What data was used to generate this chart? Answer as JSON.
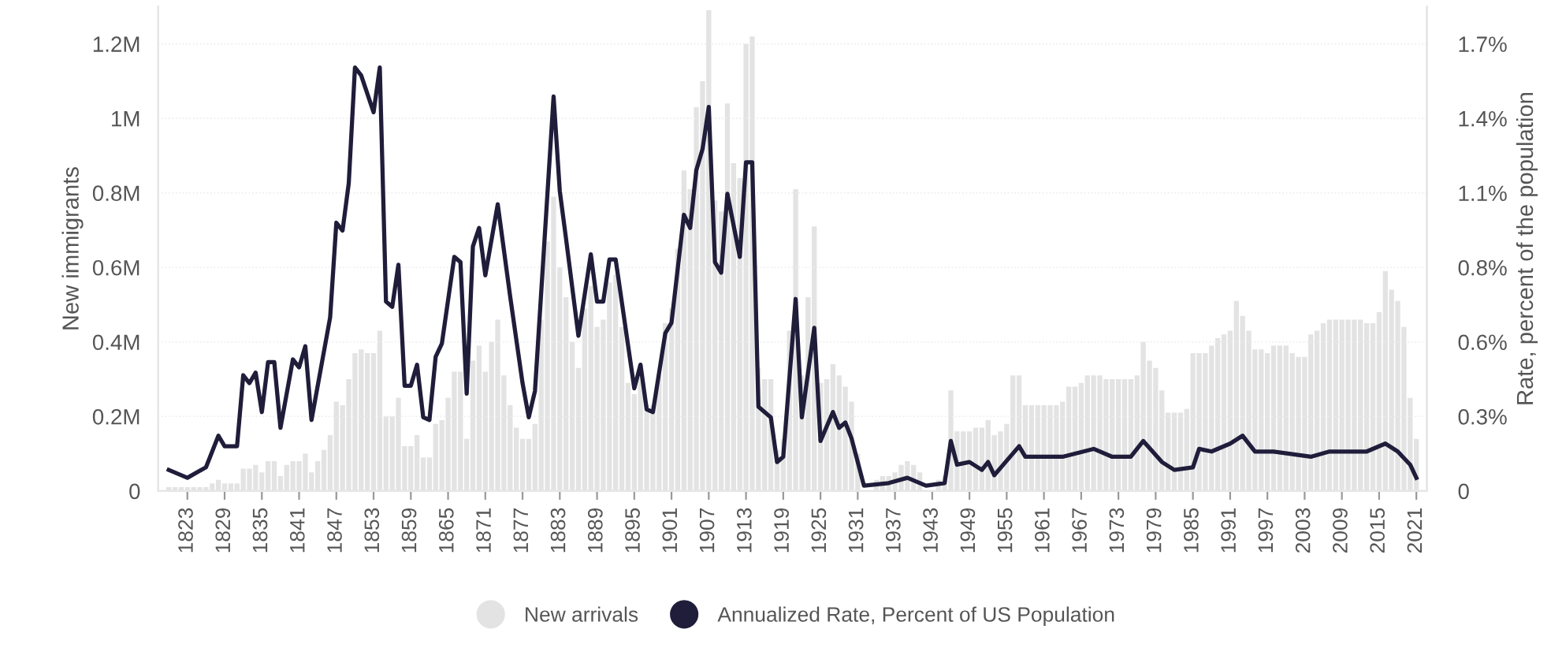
{
  "chart_data": {
    "type": "bar",
    "ylabel": "New immigrants",
    "y2label": "Rate, percent of the population",
    "x": [
      1820,
      1821,
      1822,
      1823,
      1824,
      1825,
      1826,
      1827,
      1828,
      1829,
      1830,
      1831,
      1832,
      1833,
      1834,
      1835,
      1836,
      1837,
      1838,
      1839,
      1840,
      1841,
      1842,
      1843,
      1844,
      1845,
      1846,
      1847,
      1848,
      1849,
      1850,
      1851,
      1852,
      1853,
      1854,
      1855,
      1856,
      1857,
      1858,
      1859,
      1860,
      1861,
      1862,
      1863,
      1864,
      1865,
      1866,
      1867,
      1868,
      1869,
      1870,
      1871,
      1872,
      1873,
      1874,
      1875,
      1876,
      1877,
      1878,
      1879,
      1880,
      1881,
      1882,
      1883,
      1884,
      1885,
      1886,
      1887,
      1888,
      1889,
      1890,
      1891,
      1892,
      1893,
      1894,
      1895,
      1896,
      1897,
      1898,
      1899,
      1900,
      1901,
      1902,
      1903,
      1904,
      1905,
      1906,
      1907,
      1908,
      1909,
      1910,
      1911,
      1912,
      1913,
      1914,
      1915,
      1916,
      1917,
      1918,
      1919,
      1920,
      1921,
      1922,
      1923,
      1924,
      1925,
      1926,
      1927,
      1928,
      1929,
      1930,
      1931,
      1932,
      1933,
      1934,
      1935,
      1936,
      1937,
      1938,
      1939,
      1940,
      1941,
      1942,
      1943,
      1944,
      1945,
      1946,
      1947,
      1948,
      1949,
      1950,
      1951,
      1952,
      1953,
      1954,
      1955,
      1956,
      1957,
      1958,
      1959,
      1960,
      1961,
      1962,
      1963,
      1964,
      1965,
      1966,
      1967,
      1968,
      1969,
      1970,
      1971,
      1972,
      1973,
      1974,
      1975,
      1976,
      1977,
      1978,
      1979,
      1980,
      1981,
      1982,
      1983,
      1984,
      1985,
      1986,
      1987,
      1988,
      1989,
      1990,
      1991,
      1992,
      1993,
      1994,
      1995,
      1996,
      1997,
      1998,
      1999,
      2000,
      2001,
      2002,
      2003,
      2004,
      2005,
      2006,
      2007,
      2008,
      2009,
      2010,
      2011,
      2012,
      2013,
      2014,
      2015,
      2016,
      2017,
      2018,
      2019,
      2020,
      2021
    ],
    "series": [
      {
        "name": "New arrivals",
        "color": "#e3e3e3",
        "values": [
          10000,
          10000,
          10000,
          10000,
          10000,
          10000,
          10000,
          20000,
          30000,
          20000,
          20000,
          20000,
          60000,
          60000,
          70000,
          50000,
          80000,
          80000,
          40000,
          70000,
          80000,
          80000,
          100000,
          50000,
          80000,
          110000,
          150000,
          240000,
          230000,
          300000,
          370000,
          380000,
          370000,
          370000,
          430000,
          200000,
          200000,
          250000,
          120000,
          120000,
          150000,
          90000,
          90000,
          180000,
          190000,
          250000,
          320000,
          320000,
          140000,
          350000,
          390000,
          320000,
          400000,
          460000,
          310000,
          230000,
          170000,
          140000,
          140000,
          180000,
          460000,
          670000,
          790000,
          600000,
          520000,
          400000,
          330000,
          490000,
          550000,
          440000,
          460000,
          560000,
          580000,
          440000,
          290000,
          260000,
          340000,
          230000,
          230000,
          310000,
          450000,
          490000,
          650000,
          860000,
          810000,
          1030000,
          1100000,
          1290000,
          780000,
          750000,
          1040000,
          880000,
          840000,
          1200000,
          1220000,
          330000,
          300000,
          300000,
          110000,
          140000,
          430000,
          810000,
          310000,
          520000,
          710000,
          290000,
          300000,
          340000,
          310000,
          280000,
          240000,
          100000,
          null,
          null,
          30000,
          40000,
          40000,
          50000,
          70000,
          80000,
          70000,
          50000,
          null,
          null,
          30000,
          40000,
          270000,
          160000,
          160000,
          160000,
          170000,
          170000,
          190000,
          150000,
          160000,
          180000,
          310000,
          310000,
          230000,
          230000,
          230000,
          230000,
          230000,
          230000,
          240000,
          280000,
          280000,
          290000,
          310000,
          310000,
          310000,
          300000,
          300000,
          300000,
          300000,
          300000,
          310000,
          400000,
          350000,
          330000,
          270000,
          210000,
          210000,
          210000,
          220000,
          370000,
          370000,
          370000,
          390000,
          410000,
          420000,
          430000,
          510000,
          470000,
          430000,
          380000,
          380000,
          370000,
          390000,
          390000,
          390000,
          370000,
          360000,
          360000,
          420000,
          430000,
          450000,
          460000,
          460000,
          460000,
          460000,
          460000,
          460000,
          450000,
          450000,
          480000,
          590000,
          540000,
          510000,
          440000,
          250000,
          140000
        ]
      },
      {
        "name": "Annualized Rate, Percent of US Population",
        "type": "line",
        "axis": "y2",
        "color": "#1f1d3a",
        "x": [
          1820,
          1823,
          1826,
          1828,
          1829,
          1831,
          1832,
          1833,
          1834,
          1835,
          1836,
          1837,
          1838,
          1840,
          1841,
          1842,
          1843,
          1846,
          1847,
          1848,
          1849,
          1850,
          1851,
          1853,
          1854,
          1855,
          1856,
          1857,
          1858,
          1859,
          1860,
          1861,
          1862,
          1863,
          1864,
          1866,
          1867,
          1868,
          1869,
          1870,
          1871,
          1873,
          1875,
          1877,
          1878,
          1879,
          1882,
          1883,
          1884,
          1886,
          1888,
          1889,
          1890,
          1891,
          1892,
          1895,
          1896,
          1897,
          1898,
          1900,
          1901,
          1903,
          1904,
          1905,
          1906,
          1907,
          1908,
          1909,
          1910,
          1912,
          1913,
          1914,
          1915,
          1917,
          1918,
          1919,
          1921,
          1922,
          1924,
          1925,
          1927,
          1928,
          1929,
          1930,
          1932,
          1936,
          1939,
          1942,
          1945,
          1946,
          1947,
          1949,
          1951,
          1952,
          1953,
          1957,
          1958,
          1964,
          1969,
          1972,
          1975,
          1977,
          1980,
          1982,
          1985,
          1986,
          1988,
          1991,
          1993,
          1995,
          1998,
          2004,
          2007,
          2013,
          2016,
          2018,
          2020,
          2021
        ],
        "values": [
          0.08,
          0.05,
          0.09,
          0.21,
          0.17,
          0.17,
          0.44,
          0.41,
          0.45,
          0.3,
          0.49,
          0.49,
          0.24,
          0.5,
          0.47,
          0.55,
          0.27,
          0.66,
          1.02,
          0.99,
          1.17,
          1.61,
          1.58,
          1.44,
          1.61,
          0.72,
          0.7,
          0.86,
          0.4,
          0.4,
          0.48,
          0.28,
          0.27,
          0.51,
          0.56,
          0.89,
          0.87,
          0.37,
          0.93,
          1.0,
          0.82,
          1.09,
          0.74,
          0.41,
          0.28,
          0.38,
          1.5,
          1.14,
          0.96,
          0.59,
          0.9,
          0.72,
          0.72,
          0.88,
          0.88,
          0.39,
          0.48,
          0.31,
          0.3,
          0.6,
          0.64,
          1.05,
          1.0,
          1.22,
          1.3,
          1.46,
          0.87,
          0.83,
          1.13,
          0.89,
          1.25,
          1.25,
          0.32,
          0.28,
          0.11,
          0.13,
          0.73,
          0.28,
          0.62,
          0.19,
          0.3,
          0.24,
          0.26,
          0.2,
          0.02,
          0.03,
          0.05,
          0.02,
          0.03,
          0.19,
          0.1,
          0.11,
          0.08,
          0.11,
          0.06,
          0.17,
          0.13,
          0.13,
          0.16,
          0.13,
          0.13,
          0.19,
          0.11,
          0.08,
          0.09,
          0.16,
          0.15,
          0.18,
          0.21,
          0.15,
          0.15,
          0.13,
          0.15,
          0.15,
          0.18,
          0.15,
          0.1,
          0.05
        ]
      }
    ],
    "xlim": [
      1818.3,
      2022.7
    ],
    "xticks": [
      1823,
      1829,
      1835,
      1841,
      1847,
      1853,
      1859,
      1865,
      1871,
      1877,
      1883,
      1889,
      1895,
      1901,
      1907,
      1913,
      1919,
      1925,
      1931,
      1937,
      1943,
      1949,
      1955,
      1961,
      1967,
      1973,
      1979,
      1985,
      1991,
      1997,
      2003,
      2009,
      2015,
      2021
    ],
    "ylim": [
      0,
      1300000
    ],
    "yticks": [
      {
        "value": 0,
        "label": "0"
      },
      {
        "value": 200000,
        "label": "0.2M"
      },
      {
        "value": 400000,
        "label": "0.4M"
      },
      {
        "value": 600000,
        "label": "0.6M"
      },
      {
        "value": 800000,
        "label": "0.8M"
      },
      {
        "value": 1000000,
        "label": "1M"
      },
      {
        "value": 1200000,
        "label": "1.2M"
      }
    ],
    "y2lim": [
      0,
      1.8417
    ],
    "y2ticks": [
      0,
      {
        "value": 0.2833,
        "label": "0.3%"
      },
      {
        "value": 0.5667,
        "label": "0.6%"
      },
      {
        "value": 0.85,
        "label": "0.8%"
      },
      {
        "value": 1.1333,
        "label": "1.1%"
      },
      {
        "value": 1.4167,
        "label": "1.4%"
      },
      {
        "value": 1.7,
        "label": "1.7%"
      }
    ],
    "grid": "y",
    "legend": "bottom",
    "marker": "none",
    "line_style": "solid"
  }
}
